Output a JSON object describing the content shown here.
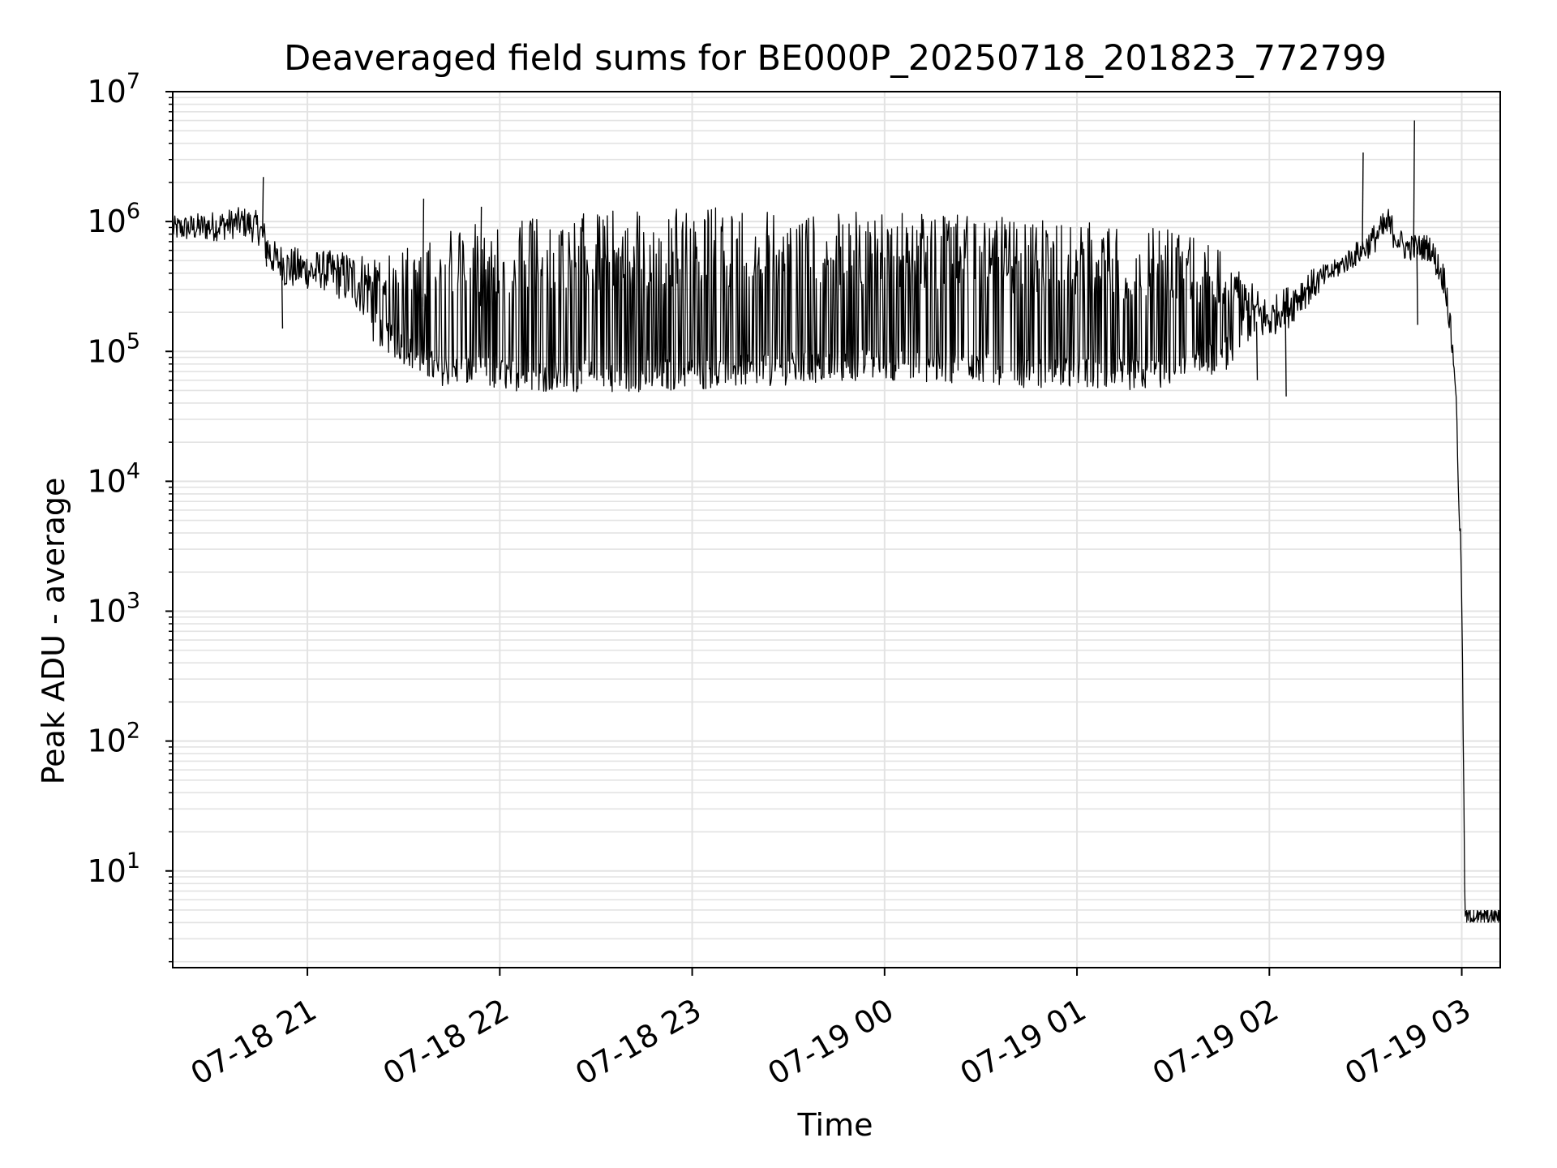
{
  "chart_data": {
    "type": "line",
    "title": "Deaveraged field sums for BE000P_20250718_201823_772799",
    "xlabel": "Time",
    "ylabel": "Peak ADU - average",
    "yscale": "log",
    "ylim": [
      1.8,
      10000000
    ],
    "xlim": [
      "2025-07-18 20:18",
      "2025-07-19 03:12"
    ],
    "grid": true,
    "line_color": "#000000",
    "x_ticks": [
      {
        "value": "2025-07-18 21:00",
        "label": "07-18 21"
      },
      {
        "value": "2025-07-18 22:00",
        "label": "07-18 22"
      },
      {
        "value": "2025-07-18 23:00",
        "label": "07-18 23"
      },
      {
        "value": "2025-07-19 00:00",
        "label": "07-19 00"
      },
      {
        "value": "2025-07-19 01:00",
        "label": "07-19 01"
      },
      {
        "value": "2025-07-19 02:00",
        "label": "07-19 02"
      },
      {
        "value": "2025-07-19 03:00",
        "label": "07-19 03"
      }
    ],
    "y_ticks": [
      {
        "value": 10,
        "base": "10",
        "exp": "1"
      },
      {
        "value": 100,
        "base": "10",
        "exp": "2"
      },
      {
        "value": 1000,
        "base": "10",
        "exp": "3"
      },
      {
        "value": 10000,
        "base": "10",
        "exp": "4"
      },
      {
        "value": 100000,
        "base": "10",
        "exp": "5"
      },
      {
        "value": 1000000,
        "base": "10",
        "exp": "6"
      },
      {
        "value": 10000000,
        "base": "10",
        "exp": "7"
      }
    ],
    "series": [
      {
        "style": "noisy spiky line with alternating baseline/peak samples",
        "envelope": [
          {
            "t": "2025-07-18 20:18",
            "low": 700000,
            "high": 1100000
          },
          {
            "t": "2025-07-18 20:30",
            "low": 700000,
            "high": 1200000
          },
          {
            "t": "2025-07-18 20:40",
            "low": 750000,
            "high": 1300000
          },
          {
            "t": "2025-07-18 20:45",
            "low": 650000,
            "high": 1200000
          },
          {
            "t": "2025-07-18 20:50",
            "low": 300000,
            "high": 700000
          },
          {
            "t": "2025-07-18 21:00",
            "low": 300000,
            "high": 600000
          },
          {
            "t": "2025-07-18 21:10",
            "low": 200000,
            "high": 600000
          },
          {
            "t": "2025-07-18 21:20",
            "low": 120000,
            "high": 600000
          },
          {
            "t": "2025-07-18 21:30",
            "low": 80000,
            "high": 600000
          },
          {
            "t": "2025-07-18 21:40",
            "low": 55000,
            "high": 900000
          },
          {
            "t": "2025-07-18 22:00",
            "low": 50000,
            "high": 1000000
          },
          {
            "t": "2025-07-18 22:30",
            "low": 48000,
            "high": 1200000
          },
          {
            "t": "2025-07-18 23:00",
            "low": 50000,
            "high": 1300000
          },
          {
            "t": "2025-07-18 23:30",
            "low": 55000,
            "high": 1300000
          },
          {
            "t": "2025-07-19 00:00",
            "low": 60000,
            "high": 1200000
          },
          {
            "t": "2025-07-19 00:30",
            "low": 55000,
            "high": 1100000
          },
          {
            "t": "2025-07-19 01:00",
            "low": 50000,
            "high": 1000000
          },
          {
            "t": "2025-07-19 01:30",
            "low": 50000,
            "high": 900000
          },
          {
            "t": "2025-07-19 01:45",
            "low": 70000,
            "high": 600000
          },
          {
            "t": "2025-07-19 02:00",
            "low": 100000,
            "high": 250000
          },
          {
            "t": "2025-07-19 02:10",
            "low": 200000,
            "high": 400000
          },
          {
            "t": "2025-07-19 02:20",
            "low": 350000,
            "high": 500000
          },
          {
            "t": "2025-07-19 02:30",
            "low": 500000,
            "high": 800000
          },
          {
            "t": "2025-07-19 02:37",
            "low": 700000,
            "high": 1300000
          },
          {
            "t": "2025-07-19 02:42",
            "low": 500000,
            "high": 800000
          },
          {
            "t": "2025-07-19 02:50",
            "low": 500000,
            "high": 800000
          },
          {
            "t": "2025-07-19 02:55",
            "low": 250000,
            "high": 450000
          },
          {
            "t": "2025-07-19 02:58",
            "low": 50000,
            "high": 80000
          },
          {
            "t": "2025-07-19 03:00",
            "low": 1000,
            "high": 2000
          },
          {
            "t": "2025-07-19 03:01",
            "low": 4,
            "high": 5
          },
          {
            "t": "2025-07-19 03:12",
            "low": 4,
            "high": 5
          }
        ],
        "spikes": [
          {
            "t": "2025-07-18 20:46",
            "y": 2200000
          },
          {
            "t": "2025-07-18 20:47",
            "y": 450000
          },
          {
            "t": "2025-07-18 20:52",
            "y": 150000
          },
          {
            "t": "2025-07-18 21:36",
            "y": 1500000
          },
          {
            "t": "2025-07-18 21:54",
            "y": 1300000
          },
          {
            "t": "2025-07-19 02:29",
            "y": 3400000
          },
          {
            "t": "2025-07-19 02:45",
            "y": 6000000
          },
          {
            "t": "2025-07-19 02:46",
            "y": 160000
          },
          {
            "t": "2025-07-19 01:56",
            "y": 60000
          },
          {
            "t": "2025-07-19 02:05",
            "y": 45000
          }
        ]
      }
    ]
  }
}
